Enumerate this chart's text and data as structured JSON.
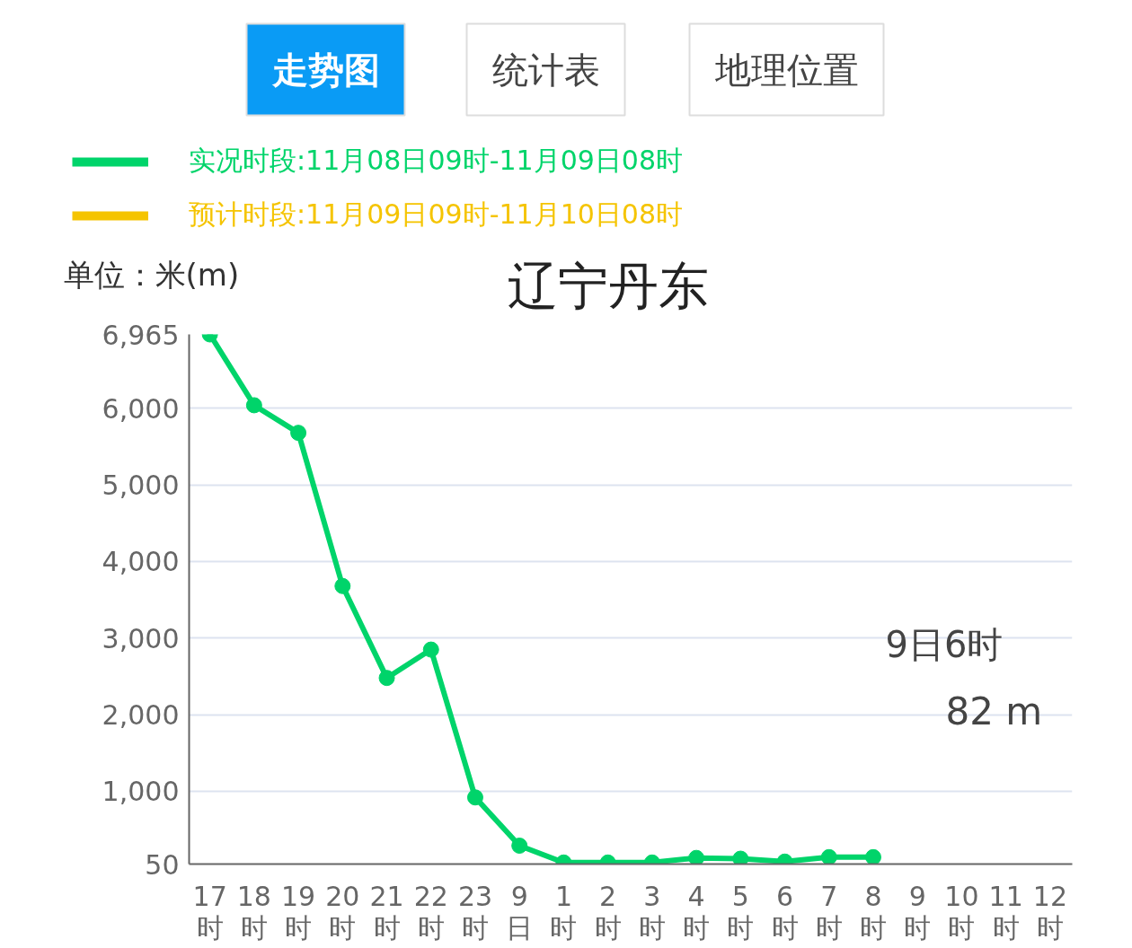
{
  "chart_data": {
    "type": "line",
    "title": "辽宁丹东",
    "ylabel": "单位：米(m)",
    "categories": [
      "17时",
      "18时",
      "19时",
      "20时",
      "21时",
      "22时",
      "23时",
      "9日",
      "1时",
      "2时",
      "3时",
      "4时",
      "5时",
      "6时",
      "7时",
      "8时",
      "9时",
      "10时",
      "11时",
      "12时"
    ],
    "series": [
      {
        "name": "实况时段:11月08日09时-11月09日08时",
        "color": "#00d46a",
        "values": [
          6965,
          6040,
          5680,
          3680,
          2480,
          2850,
          920,
          290,
          70,
          70,
          70,
          130,
          120,
          82,
          140,
          140,
          null,
          null,
          null,
          null
        ]
      },
      {
        "name": "预计时段:11月09日09时-11月10日08时",
        "color": "#f5c400",
        "values": [
          null,
          null,
          null,
          null,
          null,
          null,
          null,
          null,
          null,
          null,
          null,
          null,
          null,
          null,
          null,
          null,
          null,
          null,
          null,
          null
        ]
      }
    ],
    "ylim": [
      50,
      6965
    ],
    "yticks": [
      50,
      {
        "value": 1000,
        "label": "1,000"
      },
      {
        "value": 2000,
        "label": "2,000"
      },
      {
        "value": 3000,
        "label": "3,000"
      },
      {
        "value": 4000,
        "label": "4,000"
      },
      {
        "value": 5000,
        "label": "5,000"
      },
      {
        "value": 6000,
        "label": "6,000"
      },
      {
        "value": 6965,
        "label": "6,965"
      }
    ],
    "grid": "y",
    "legend": "top left",
    "marker": "circle",
    "line_style": "solid",
    "annotations": [
      "走势图",
      "统计表",
      "地理位置",
      "9日6时",
      "82 m"
    ]
  }
}
